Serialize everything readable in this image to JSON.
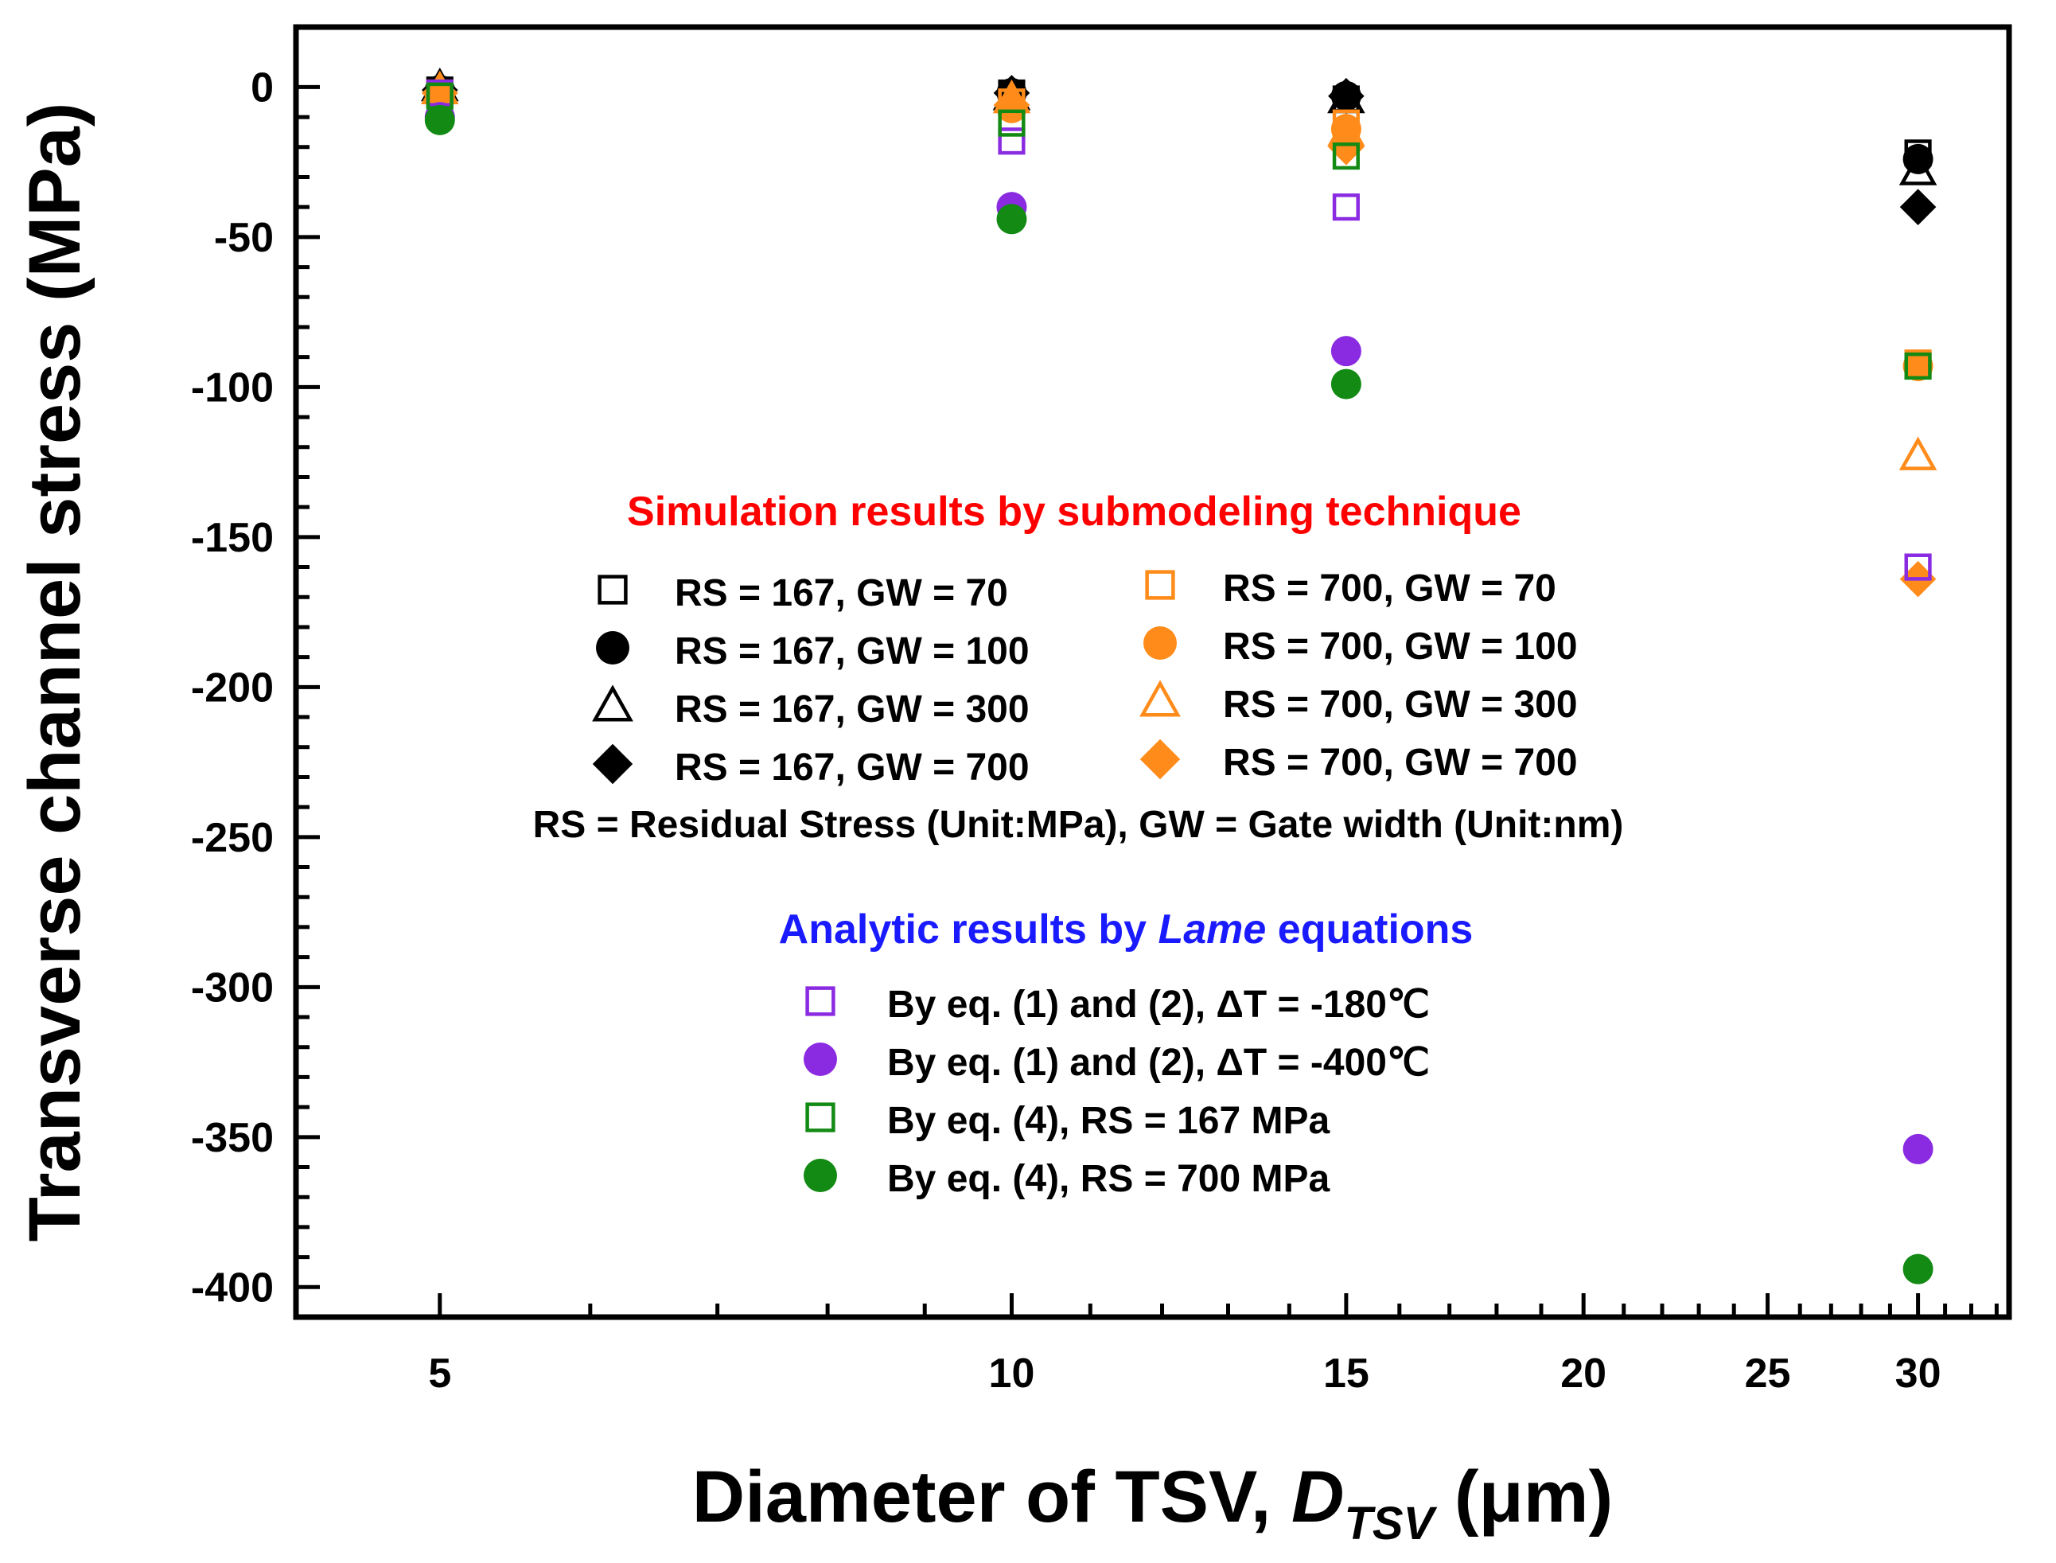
{
  "chart_data": {
    "type": "scatter",
    "x_scale": "log",
    "xlabel": {
      "main": "Diameter of TSV, ",
      "symbol": "D",
      "subscript": "TSV",
      "unit": " (μm)"
    },
    "ylabel": "Transverse channel stress (MPa)",
    "xlim": [
      4.2,
      33.5
    ],
    "ylim": [
      -410,
      20
    ],
    "x_ticks": [
      5,
      10,
      15,
      20,
      25,
      30
    ],
    "y_ticks": [
      0,
      -50,
      -100,
      -150,
      -200,
      -250,
      -300,
      -350,
      -400
    ],
    "legend_position": "center",
    "simulation_heading": "Simulation results by submodeling technique",
    "rs_note": "RS = Residual Stress (Unit:MPa), GW = Gate width (Unit:nm)",
    "analytic_heading": {
      "prefix": "Analytic results by ",
      "italic": "Lame",
      "suffix": " equations"
    },
    "colors": {
      "black": "#000000",
      "orange": "#ff8c1a",
      "purple": "#8a2be2",
      "green": "#138a13",
      "red": "#ff0000",
      "blue": "#1a1aff"
    },
    "series": [
      {
        "name": "RS = 167, GW = 70",
        "group": "sim",
        "marker": "square-open",
        "color": "#000000",
        "x": [
          5,
          10,
          15,
          30
        ],
        "y": [
          -1,
          -2,
          -4,
          -22
        ]
      },
      {
        "name": "RS = 167, GW = 100",
        "group": "sim",
        "marker": "circle-filled",
        "color": "#000000",
        "x": [
          5,
          10,
          15,
          30
        ],
        "y": [
          -1,
          -2,
          -3,
          -24
        ]
      },
      {
        "name": "RS = 167, GW = 300",
        "group": "sim",
        "marker": "triangle-open",
        "color": "#000000",
        "x": [
          5,
          10,
          15,
          30
        ],
        "y": [
          0,
          -3,
          -4,
          -28
        ]
      },
      {
        "name": "RS = 167, GW = 700",
        "group": "sim",
        "marker": "diamond-filled",
        "color": "#000000",
        "x": [
          5,
          10,
          15,
          30
        ],
        "y": [
          -1,
          -2,
          -3,
          -40
        ]
      },
      {
        "name": "RS = 700, GW = 70",
        "group": "sim",
        "marker": "square-open",
        "color": "#ff8c1a",
        "x": [
          5,
          10,
          15,
          30
        ],
        "y": [
          -2,
          -5,
          -12,
          -92
        ]
      },
      {
        "name": "RS = 700, GW = 100",
        "group": "sim",
        "marker": "circle-filled",
        "color": "#ff8c1a",
        "x": [
          5,
          10,
          15,
          30
        ],
        "y": [
          -3,
          -7,
          -14,
          -93
        ]
      },
      {
        "name": "RS = 700, GW = 300",
        "group": "sim",
        "marker": "triangle-open",
        "color": "#ff8c1a",
        "x": [
          5,
          10,
          15,
          30
        ],
        "y": [
          -1,
          -4,
          -15,
          -123
        ]
      },
      {
        "name": "RS = 700, GW = 700",
        "group": "sim",
        "marker": "diamond-filled",
        "color": "#ff8c1a",
        "x": [
          5,
          10,
          15,
          30
        ],
        "y": [
          -2,
          -6,
          -20,
          -164
        ]
      },
      {
        "name": "By eq. (1) and (2), ΔT = -180℃",
        "group": "analytic",
        "marker": "square-open",
        "color": "#8a2be2",
        "x": [
          5,
          10,
          15,
          30
        ],
        "y": [
          -2,
          -18,
          -40,
          -160
        ]
      },
      {
        "name": "By eq. (1) and (2), ΔT = -400℃",
        "group": "analytic",
        "marker": "circle-filled",
        "color": "#8a2be2",
        "x": [
          5,
          10,
          15,
          30
        ],
        "y": [
          -10,
          -40,
          -88,
          -354
        ]
      },
      {
        "name": "By eq. (4), RS = 167 MPa",
        "group": "analytic",
        "marker": "square-open",
        "color": "#138a13",
        "x": [
          5,
          10,
          15,
          30
        ],
        "y": [
          -3,
          -12,
          -23,
          -93
        ]
      },
      {
        "name": "By eq. (4), RS = 700 MPa",
        "group": "analytic",
        "marker": "circle-filled",
        "color": "#138a13",
        "x": [
          5,
          10,
          15,
          30
        ],
        "y": [
          -11,
          -44,
          -99,
          -394
        ]
      }
    ]
  }
}
